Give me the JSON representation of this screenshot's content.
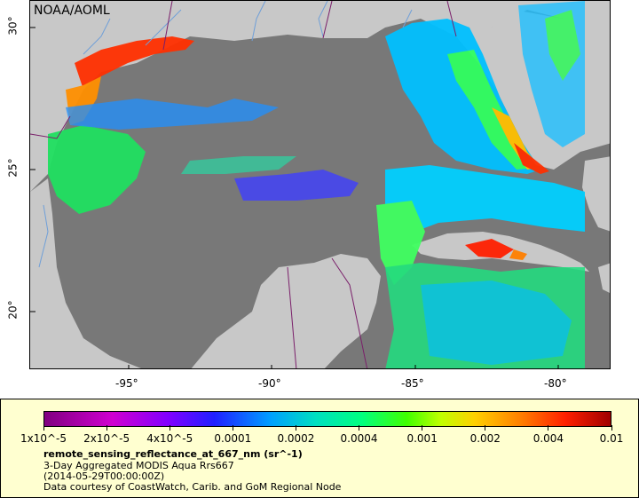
{
  "map": {
    "credit": "NOAA/AOML",
    "lon_ticks": [
      "-95°",
      "-90°",
      "-85°",
      "-80°"
    ],
    "lat_ticks": [
      "30°",
      "25°",
      "20°"
    ]
  },
  "legend": {
    "colorbar_labels": [
      "1x10^-5",
      "2x10^-5",
      "4x10^-5",
      "0.0001",
      "0.0002",
      "0.0004",
      "0.001",
      "0.002",
      "0.004",
      "0.01"
    ],
    "title": "remote_sensing_reflectance_at_667_nm (sr^-1)",
    "line1": "3-Day Aggregated MODIS Aqua Rrs667",
    "line2": "(2014-05-29T00:00:00Z)",
    "line3": "Data courtesy of CoastWatch, Carib. and GoM Regional Node"
  },
  "colors": {
    "ocean": "#787878",
    "land": "#c8c8c8",
    "rivers": "#6f9fd8",
    "borders": "#7a1f6a",
    "panel": "#ffffd0"
  }
}
